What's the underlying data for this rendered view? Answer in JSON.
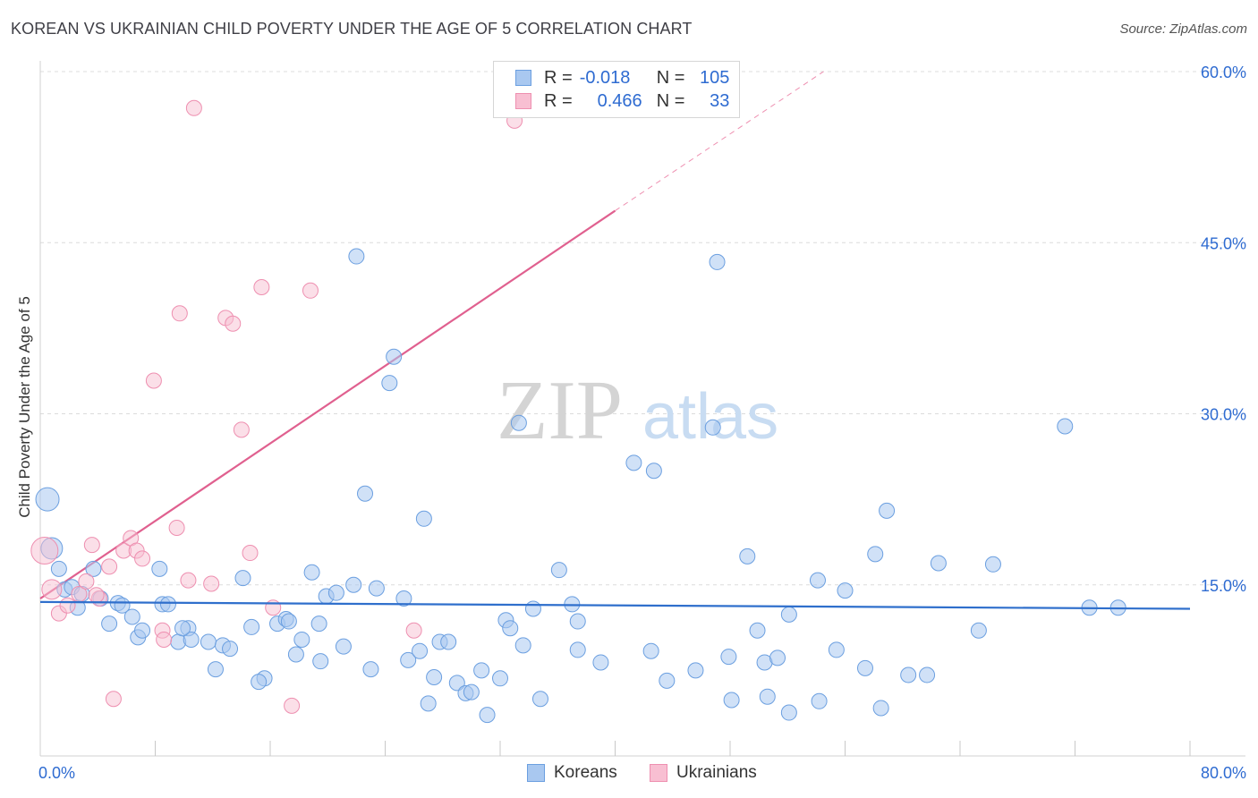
{
  "header": {
    "title": "KOREAN VS UKRAINIAN CHILD POVERTY UNDER THE AGE OF 5 CORRELATION CHART",
    "source": "Source: ZipAtlas.com"
  },
  "watermark": {
    "zip": "ZIP",
    "atlas": "atlas"
  },
  "legend": {
    "koreans": {
      "r_label": "R =",
      "r_value": "-0.018",
      "n_label": "N =",
      "n_value": "105"
    },
    "ukrainians": {
      "r_label": "R =",
      "r_value": "0.466",
      "n_label": "N =",
      "n_value": "33"
    }
  },
  "bottom_legend": {
    "koreans": "Koreans",
    "ukrainians": "Ukrainians"
  },
  "colors": {
    "korean_fill": "#a9c8f0",
    "korean_stroke": "#6b9fe0",
    "korean_line": "#2f6fcc",
    "ukrainian_fill": "#f8bfd2",
    "ukrainian_stroke": "#ee8fb0",
    "ukrainian_line": "#e0608f",
    "axis_text": "#2e6bd1",
    "grid": "#dcdcdc"
  },
  "chart_data": {
    "type": "scatter",
    "title": "KOREAN VS UKRAINIAN CHILD POVERTY UNDER THE AGE OF 5 CORRELATION CHART",
    "ylabel": "Child Poverty Under the Age of 5",
    "xlabel": "",
    "xlim": [
      0,
      80
    ],
    "ylim": [
      0,
      60
    ],
    "x_tick_labels": [
      "0.0%",
      "80.0%"
    ],
    "y_tick_labels": [
      "15.0%",
      "30.0%",
      "45.0%",
      "60.0%"
    ],
    "y_ticks": [
      15,
      30,
      45,
      60
    ],
    "grid": "horizontal dashed",
    "legend_position": "top-center",
    "series": [
      {
        "name": "Koreans",
        "r": -0.018,
        "n": 105,
        "trend": {
          "x": [
            0,
            80
          ],
          "y": [
            13.5,
            12.9
          ]
        },
        "points": [
          [
            0.5,
            22.5
          ],
          [
            0.8,
            18.2
          ],
          [
            1.3,
            16.4
          ],
          [
            1.7,
            14.6
          ],
          [
            2.2,
            14.8
          ],
          [
            2.6,
            13.0
          ],
          [
            2.9,
            14.2
          ],
          [
            3.7,
            16.4
          ],
          [
            4.2,
            13.8
          ],
          [
            4.8,
            11.6
          ],
          [
            5.4,
            13.4
          ],
          [
            5.7,
            13.2
          ],
          [
            6.4,
            12.2
          ],
          [
            6.8,
            10.4
          ],
          [
            7.1,
            11.0
          ],
          [
            8.3,
            16.4
          ],
          [
            8.5,
            13.3
          ],
          [
            8.9,
            13.3
          ],
          [
            9.6,
            10.0
          ],
          [
            10.3,
            11.2
          ],
          [
            10.5,
            10.2
          ],
          [
            11.7,
            10.0
          ],
          [
            12.2,
            7.6
          ],
          [
            12.7,
            9.7
          ],
          [
            13.2,
            9.4
          ],
          [
            14.1,
            15.6
          ],
          [
            14.7,
            11.3
          ],
          [
            15.6,
            6.8
          ],
          [
            16.5,
            11.6
          ],
          [
            17.1,
            12.0
          ],
          [
            17.3,
            11.8
          ],
          [
            17.8,
            8.9
          ],
          [
            18.2,
            10.2
          ],
          [
            18.9,
            16.1
          ],
          [
            19.4,
            11.6
          ],
          [
            19.5,
            8.3
          ],
          [
            19.9,
            14.0
          ],
          [
            20.6,
            14.3
          ],
          [
            21.1,
            9.6
          ],
          [
            21.8,
            15.0
          ],
          [
            22.0,
            43.8
          ],
          [
            22.6,
            23.0
          ],
          [
            23.0,
            7.6
          ],
          [
            23.4,
            14.7
          ],
          [
            24.3,
            32.7
          ],
          [
            24.6,
            35.0
          ],
          [
            25.3,
            13.8
          ],
          [
            25.6,
            8.4
          ],
          [
            26.4,
            9.2
          ],
          [
            26.7,
            20.8
          ],
          [
            27.0,
            4.6
          ],
          [
            27.4,
            6.9
          ],
          [
            27.8,
            10.0
          ],
          [
            28.4,
            10.0
          ],
          [
            29.0,
            6.4
          ],
          [
            29.6,
            5.5
          ],
          [
            30.0,
            5.6
          ],
          [
            30.7,
            7.5
          ],
          [
            31.1,
            3.6
          ],
          [
            32.0,
            6.8
          ],
          [
            32.4,
            11.9
          ],
          [
            32.7,
            11.2
          ],
          [
            33.3,
            29.2
          ],
          [
            33.6,
            9.7
          ],
          [
            34.3,
            12.9
          ],
          [
            34.8,
            5.0
          ],
          [
            36.1,
            16.3
          ],
          [
            37.0,
            13.3
          ],
          [
            37.4,
            11.8
          ],
          [
            37.4,
            9.3
          ],
          [
            39.0,
            8.2
          ],
          [
            41.3,
            25.7
          ],
          [
            42.5,
            9.2
          ],
          [
            42.7,
            25.0
          ],
          [
            43.6,
            6.6
          ],
          [
            45.6,
            7.5
          ],
          [
            46.8,
            28.8
          ],
          [
            47.1,
            43.3
          ],
          [
            47.9,
            8.7
          ],
          [
            48.1,
            4.9
          ],
          [
            49.2,
            17.5
          ],
          [
            50.4,
            8.2
          ],
          [
            50.6,
            5.2
          ],
          [
            51.3,
            8.6
          ],
          [
            52.1,
            3.8
          ],
          [
            52.1,
            12.4
          ],
          [
            54.1,
            15.4
          ],
          [
            54.2,
            4.8
          ],
          [
            55.4,
            9.3
          ],
          [
            56.0,
            14.5
          ],
          [
            57.4,
            7.7
          ],
          [
            58.1,
            17.7
          ],
          [
            58.5,
            4.2
          ],
          [
            58.9,
            21.5
          ],
          [
            60.4,
            7.1
          ],
          [
            61.7,
            7.1
          ],
          [
            62.5,
            16.9
          ],
          [
            65.3,
            11.0
          ],
          [
            66.3,
            16.8
          ],
          [
            71.3,
            28.9
          ],
          [
            73.0,
            13.0
          ],
          [
            75.0,
            13.0
          ],
          [
            49.9,
            11.0
          ],
          [
            15.2,
            6.5
          ],
          [
            9.9,
            11.2
          ]
        ]
      },
      {
        "name": "Ukrainians",
        "r": 0.466,
        "n": 33,
        "trend": {
          "x": [
            0,
            40
          ],
          "y": [
            13.8,
            47.8
          ],
          "dashed_to": {
            "x": 54.5,
            "y": 60.0
          }
        },
        "points": [
          [
            0.3,
            18.0
          ],
          [
            0.8,
            14.6
          ],
          [
            1.3,
            12.5
          ],
          [
            1.9,
            13.2
          ],
          [
            2.7,
            14.2
          ],
          [
            3.2,
            15.3
          ],
          [
            3.6,
            18.5
          ],
          [
            4.1,
            13.8
          ],
          [
            4.8,
            16.6
          ],
          [
            5.1,
            5.0
          ],
          [
            5.8,
            18.0
          ],
          [
            6.3,
            19.1
          ],
          [
            6.7,
            18.0
          ],
          [
            7.1,
            17.3
          ],
          [
            7.9,
            32.9
          ],
          [
            8.5,
            11.0
          ],
          [
            8.6,
            10.2
          ],
          [
            9.5,
            20.0
          ],
          [
            9.7,
            38.8
          ],
          [
            10.3,
            15.4
          ],
          [
            10.7,
            56.8
          ],
          [
            11.9,
            15.1
          ],
          [
            12.9,
            38.4
          ],
          [
            13.4,
            37.9
          ],
          [
            14.0,
            28.6
          ],
          [
            14.6,
            17.8
          ],
          [
            15.4,
            41.1
          ],
          [
            16.2,
            13.0
          ],
          [
            17.5,
            4.4
          ],
          [
            18.8,
            40.8
          ],
          [
            26.0,
            11.0
          ],
          [
            33.0,
            55.7
          ],
          [
            3.9,
            14.1
          ]
        ]
      }
    ]
  }
}
